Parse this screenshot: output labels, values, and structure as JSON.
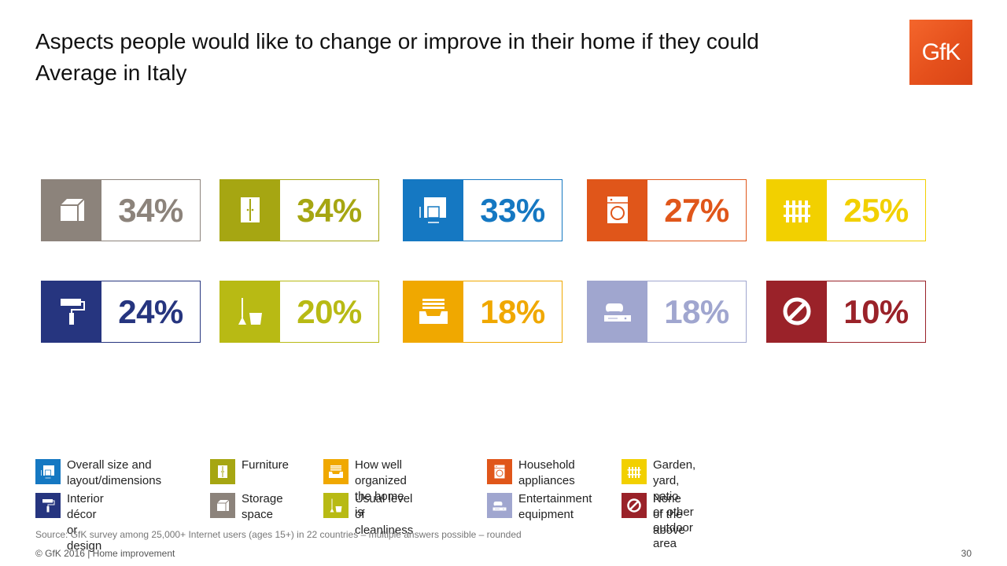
{
  "header": {
    "title_line1": "Aspects people would like to change or improve in their home if they could",
    "title_line2": "Average in Italy",
    "logo_text": "GfK"
  },
  "chart_data": {
    "type": "bar",
    "categories": [
      "Storage space",
      "Furniture",
      "Overall size and layout/dimensions",
      "Household appliances",
      "Garden, yard, patio or other outdoor area",
      "Interior décor or design",
      "Usual level of cleanliness",
      "How well organized the home is",
      "Entertainment equipment",
      "None of the above"
    ],
    "values": [
      34,
      34,
      33,
      27,
      25,
      24,
      20,
      18,
      18,
      10
    ],
    "labels": [
      "34%",
      "34%",
      "33%",
      "27%",
      "25%",
      "24%",
      "20%",
      "18%",
      "18%",
      "10%"
    ],
    "colors": [
      "#8c837b",
      "#a6a612",
      "#1578c2",
      "#e0561a",
      "#f2d000",
      "#26357f",
      "#b8ba14",
      "#f0a800",
      "#a0a6cf",
      "#9a2229"
    ],
    "icons": [
      "box-icon",
      "wardrobe-icon",
      "floorplan-icon",
      "washing-machine-icon",
      "fence-icon",
      "paint-roller-icon",
      "broom-bucket-icon",
      "drawer-icon",
      "game-console-icon",
      "prohibited-icon"
    ],
    "title": "Aspects people would like to change or improve in their home if they could",
    "subtitle": "Average in Italy",
    "unit": "%"
  },
  "legend": [
    {
      "label": "Overall size and\nlayout/dimensions",
      "color": "#1578c2",
      "icon": "floorplan-icon"
    },
    {
      "label": "Furniture",
      "color": "#a6a612",
      "icon": "wardrobe-icon"
    },
    {
      "label": "How well organized\nthe home is",
      "color": "#f0a800",
      "icon": "drawer-icon"
    },
    {
      "label": "Household\nappliances",
      "color": "#e0561a",
      "icon": "washing-machine-icon"
    },
    {
      "label": "Garden, yard, patio\nor other outdoor area",
      "color": "#f2d000",
      "icon": "fence-icon"
    },
    {
      "label": "Interior décor\nor design",
      "color": "#26357f",
      "icon": "paint-roller-icon"
    },
    {
      "label": "Storage\nspace",
      "color": "#8c837b",
      "icon": "box-icon"
    },
    {
      "label": "Usual level\nof cleanliness",
      "color": "#b8ba14",
      "icon": "broom-bucket-icon"
    },
    {
      "label": "Entertainment\nequipment",
      "color": "#a0a6cf",
      "icon": "game-console-icon"
    },
    {
      "label": "None of the\nabove",
      "color": "#9a2229",
      "icon": "prohibited-icon"
    }
  ],
  "footer": {
    "source": "Source: GfK survey among 25,000+ Internet users (ages 15+) in 22 countries – multiple answers possible – rounded",
    "copyright": "© GfK 2016 | Home improvement",
    "page_number": "30"
  }
}
